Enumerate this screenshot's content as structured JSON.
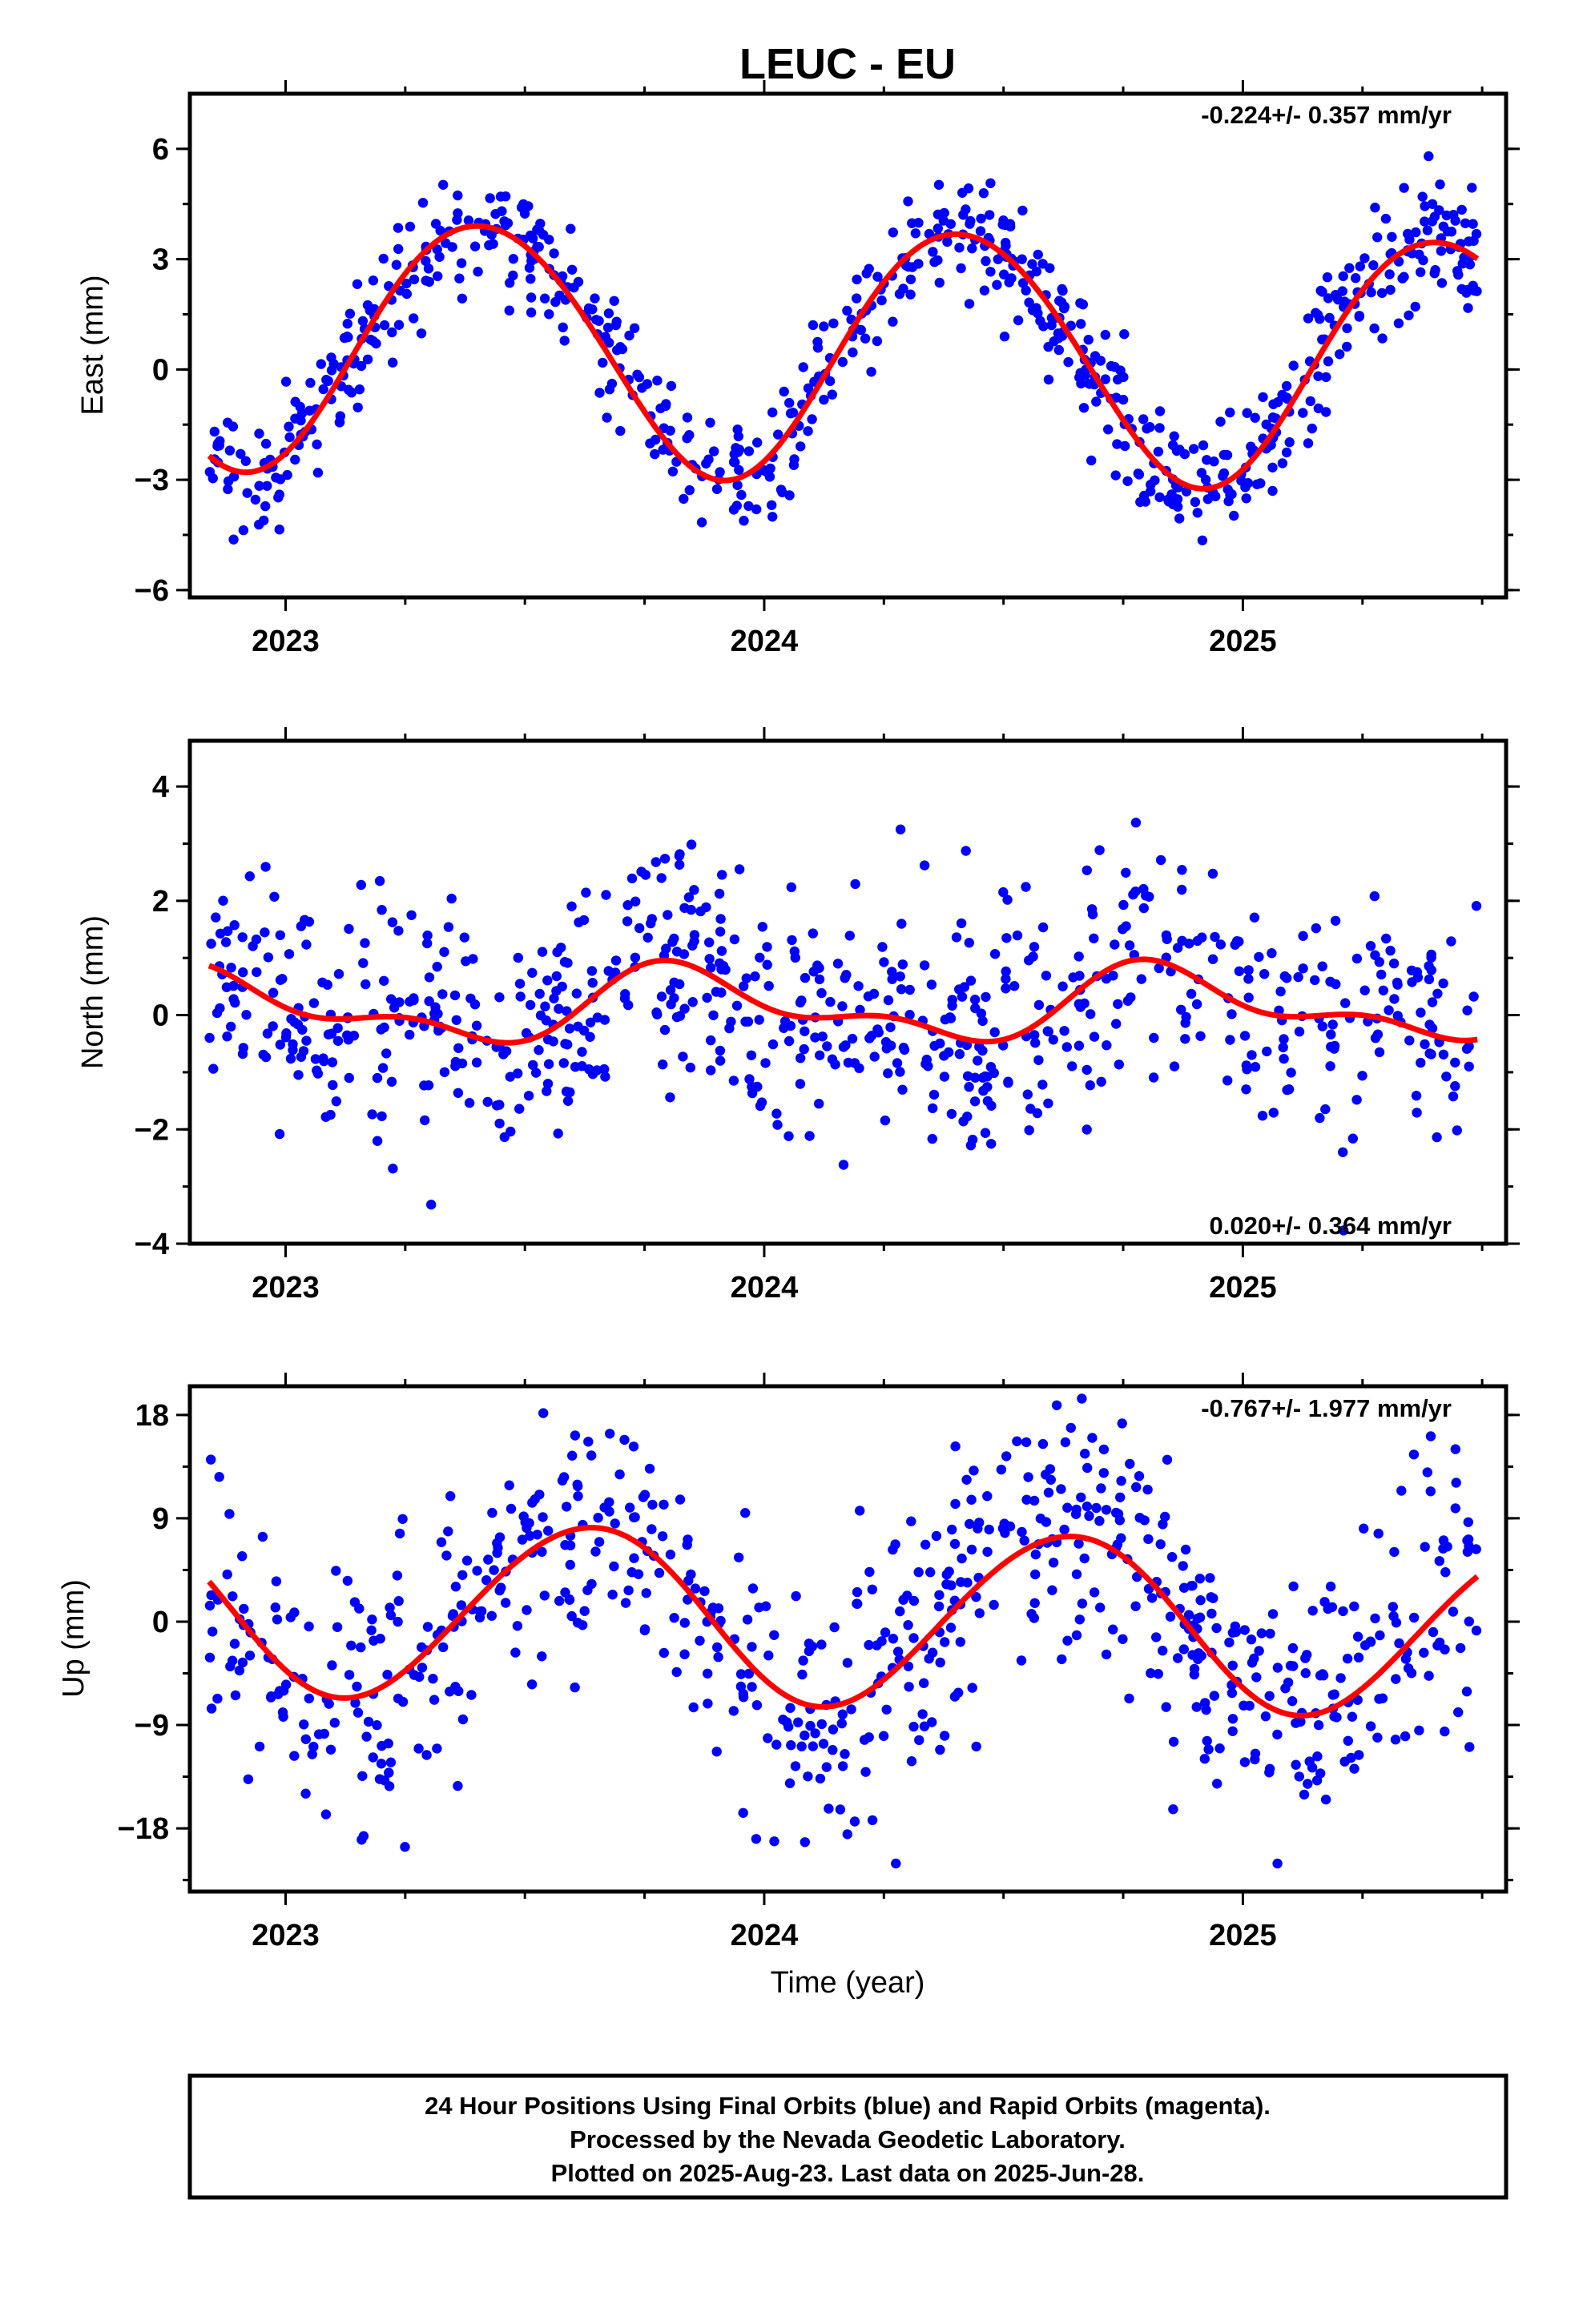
{
  "title": "LEUC - EU",
  "xlabel": "Time (year)",
  "footer": {
    "line1": "24 Hour Positions Using Final Orbits (blue) and Rapid Orbits (magenta).",
    "line2": "Processed by the Nevada Geodetic Laboratory.",
    "line3": "Plotted on 2025-Aug-23. Last data on 2025-Jun-28."
  },
  "colors": {
    "final_orbits": "#0000ff",
    "rapid_orbits": "#ff00ff",
    "fit": "#ff0000"
  },
  "chart_data": [
    {
      "type": "scatter",
      "ylabel": "East (mm)",
      "rate_label": "-0.224+/- 0.357 mm/yr",
      "rate_position": "top-right",
      "xlim": [
        2022.8,
        2025.55
      ],
      "ylim": [
        -6.2,
        7.5
      ],
      "x_ticks": [
        2023,
        2024,
        2025
      ],
      "x_tick_labels": [
        "2023",
        "2024",
        "2025"
      ],
      "y_ticks": [
        -6,
        -3,
        0,
        3,
        6
      ],
      "y_tick_labels": [
        "−6",
        "−3",
        "0",
        "3",
        "6"
      ],
      "grid": false,
      "fit_model": {
        "offset": 0.45,
        "rate": -0.224,
        "annual_amp": 3.4,
        "annual_peak": 2023.41,
        "semiannual_amp": 0.15,
        "semiannual_peak": 2023.2,
        "t0": 2024.2
      },
      "noise_sd": 0.85,
      "series": [
        {
          "role": "points",
          "color": "#0000ff"
        },
        {
          "role": "fit",
          "color": "#ff0000"
        }
      ]
    },
    {
      "type": "scatter",
      "ylabel": "North (mm)",
      "rate_label": "0.020+/- 0.364 mm/yr",
      "rate_position": "bottom-right",
      "xlim": [
        2022.8,
        2025.55
      ],
      "ylim": [
        -4.0,
        4.8
      ],
      "x_ticks": [
        2023,
        2024,
        2025
      ],
      "x_tick_labels": [
        "2023",
        "2024",
        "2025"
      ],
      "y_ticks": [
        -4,
        -2,
        0,
        2,
        4
      ],
      "y_tick_labels": [
        "−4",
        "−2",
        "0",
        "2",
        "4"
      ],
      "grid": false,
      "fit_model": {
        "offset": 0.15,
        "rate": 0.02,
        "annual_amp": 0.55,
        "annual_peak": 2023.84,
        "semiannual_amp": 0.3,
        "semiannual_peak": 2023.77,
        "t0": 2024.2
      },
      "noise_sd": 1.05,
      "series": [
        {
          "role": "points",
          "color": "#0000ff"
        },
        {
          "role": "fit",
          "color": "#ff0000"
        }
      ]
    },
    {
      "type": "scatter",
      "ylabel": "Up (mm)",
      "rate_label": "-0.767+/- 1.977 mm/yr",
      "rate_position": "top-right",
      "xlim": [
        2022.8,
        2025.55
      ],
      "ylim": [
        -23.5,
        20.5
      ],
      "x_ticks": [
        2023,
        2024,
        2025
      ],
      "x_tick_labels": [
        "2023",
        "2024",
        "2025"
      ],
      "y_ticks": [
        -18,
        -9,
        0,
        9,
        18
      ],
      "y_tick_labels": [
        "−18",
        "−9",
        "0",
        "9",
        "18"
      ],
      "grid": false,
      "fit_model": {
        "offset": 0.3,
        "rate": -0.767,
        "annual_amp": 7.6,
        "annual_peak": 2023.63,
        "semiannual_amp": 0.3,
        "semiannual_peak": 2023.3,
        "t0": 2024.2
      },
      "noise_sd": 6.0,
      "series": [
        {
          "role": "points",
          "color": "#0000ff"
        },
        {
          "role": "fit",
          "color": "#ff0000"
        }
      ]
    }
  ]
}
